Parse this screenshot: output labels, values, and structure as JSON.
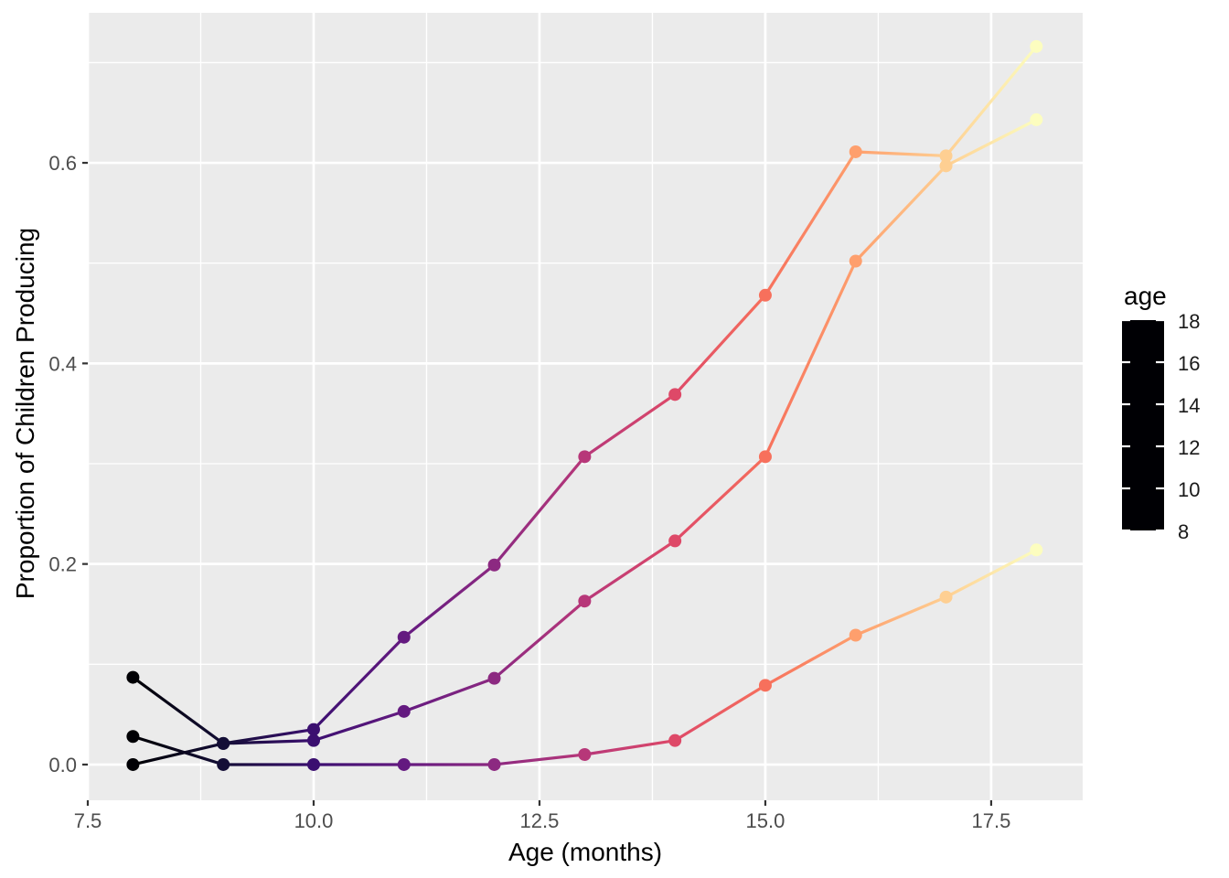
{
  "axes": {
    "x": {
      "title": "Age (months)",
      "tick_labels": [
        "7.5",
        "10.0",
        "12.5",
        "15.0",
        "17.5"
      ],
      "tick_values": [
        7.5,
        10,
        12.5,
        15,
        17.5
      ],
      "minor_values": [
        8.75,
        11.25,
        13.75,
        16.25
      ]
    },
    "y": {
      "title": "Proportion of Children Producing",
      "tick_labels": [
        "0.0",
        "0.2",
        "0.4",
        "0.6"
      ],
      "tick_values": [
        0,
        0.2,
        0.4,
        0.6
      ],
      "minor_values": [
        0.1,
        0.3,
        0.5,
        0.7
      ]
    }
  },
  "legend": {
    "title": "age",
    "tick_labels": [
      "18",
      "16",
      "14",
      "12",
      "10",
      "8"
    ],
    "tick_values": [
      18,
      16,
      14,
      12,
      10,
      8
    ],
    "range": [
      8,
      18
    ]
  },
  "colormap": {
    "name": "magma",
    "positions": [
      0,
      0.1,
      0.2,
      0.3,
      0.4,
      0.5,
      0.6,
      0.7,
      0.8,
      0.9,
      1.0
    ],
    "colors": [
      "#000004",
      "#140e36",
      "#3b0f70",
      "#641a80",
      "#8c2981",
      "#b73779",
      "#de4968",
      "#f7705c",
      "#fe9f6d",
      "#fecf92",
      "#fcfdbf"
    ]
  },
  "colors": {
    "background": "#ffffff",
    "panel_background": "#ebebeb",
    "grid": "#ffffff",
    "axis_text": "#4d4d4d",
    "axis_tick": "#333333",
    "legend_text": "#1a1a1a",
    "legend_tick": "#ffffff"
  },
  "chart_data": {
    "type": "line",
    "x": [
      8,
      9,
      10,
      11,
      12,
      13,
      14,
      15,
      16,
      17,
      18
    ],
    "series": [
      {
        "name": "line-1",
        "values": [
          0.087,
          0.021,
          0.035,
          0.127,
          0.199,
          0.307,
          0.369,
          0.468,
          0.611,
          0.607,
          0.716
        ]
      },
      {
        "name": "line-2",
        "values": [
          0.0,
          0.021,
          0.024,
          0.053,
          0.086,
          0.163,
          0.223,
          0.307,
          0.502,
          0.597,
          0.643
        ]
      },
      {
        "name": "line-3",
        "values": [
          0.028,
          0.0,
          0.0,
          0.0,
          0.0,
          0.01,
          0.024,
          0.079,
          0.129,
          0.167,
          0.214
        ]
      }
    ],
    "color_by": "x",
    "title": "",
    "xlabel": "Age (months)",
    "ylabel": "Proportion of Children Producing",
    "x_range": [
      7.5,
      18.513
    ],
    "y_range": [
      -0.0356,
      0.7496
    ],
    "grid": true,
    "legend_position": "right"
  }
}
